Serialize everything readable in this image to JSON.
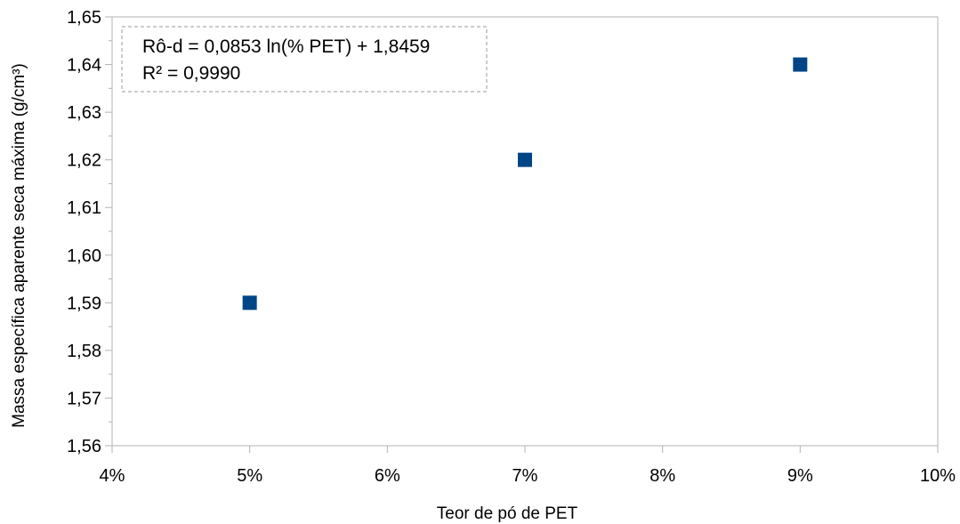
{
  "chart_data": {
    "type": "scatter",
    "xlabel": "Teor de pó de PET",
    "ylabel": "Massa específica aparente seca máxima (g/cm³)",
    "xlim": [
      4,
      10
    ],
    "ylim": [
      1.56,
      1.65
    ],
    "x_ticks": [
      "4%",
      "5%",
      "6%",
      "7%",
      "8%",
      "9%",
      "10%"
    ],
    "y_ticks": [
      "1,56",
      "1,57",
      "1,58",
      "1,59",
      "1,60",
      "1,61",
      "1,62",
      "1,63",
      "1,64",
      "1,65"
    ],
    "series": [
      {
        "x": [
          5,
          7,
          9
        ],
        "values": [
          1.59,
          1.62,
          1.64
        ],
        "color": "#004586",
        "marker": "square"
      }
    ],
    "trendline": {
      "type": "logarithmic",
      "coef_a": 0.0853,
      "coef_b": 1.8459,
      "x_range": [
        5,
        9
      ],
      "color": "#000000"
    },
    "annotations": [
      "Rô-d = 0,0853 ln(% PET) + 1,8459",
      "R² = 0,9990"
    ],
    "grid": false
  }
}
